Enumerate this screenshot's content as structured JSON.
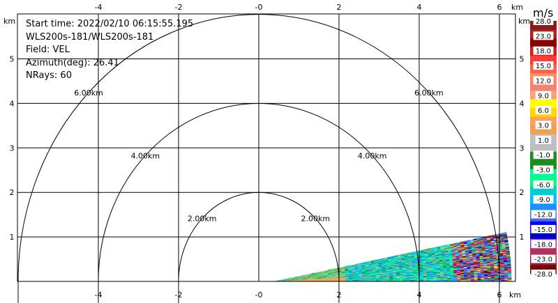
{
  "chart_data": {
    "type": "heatmap",
    "subtype": "radar-ppi-sector",
    "info": {
      "start_time": "Start time: 2022/02/10 06:15:55.195",
      "site": "WLS200s-181/WLS200s-181",
      "field": "Field: VEL",
      "azimuth": "Azimuth(deg): 26.41",
      "nrays": "NRays: 60"
    },
    "axis_unit": "km",
    "xlim": [
      -5.8,
      6.0
    ],
    "ylim": [
      0,
      5.8
    ],
    "x_ticks": [
      -4,
      -2,
      0,
      2,
      4,
      6
    ],
    "x_tick_labels": [
      "-4",
      "-2",
      "-0",
      "2",
      "4",
      "6"
    ],
    "y_ticks": [
      1,
      2,
      3,
      4,
      5
    ],
    "y_tick_labels": [
      "1",
      "2",
      "3",
      "4",
      "5"
    ],
    "range_rings": [
      {
        "radius_km": 2,
        "label": "2.00km"
      },
      {
        "radius_km": 4,
        "label": "4.00km"
      },
      {
        "radius_km": 6,
        "label": "6.00km"
      }
    ],
    "grid": true,
    "sector": {
      "origin_km": [
        0.4,
        0
      ],
      "azimuth_deg": [
        0,
        12
      ],
      "max_range_km": 5.9
    },
    "colorbar": {
      "unit": "m/s",
      "tick_labels": [
        "28.0",
        "23.0",
        "18.0",
        "15.0",
        "12.0",
        "9.0",
        "6.0",
        "3.0",
        "1.0",
        "-1.0",
        "-3.0",
        "-6.0",
        "-9.0",
        "-12.0",
        "-15.0",
        "-18.0",
        "-23.0",
        "-28.0"
      ],
      "colors": [
        "#8b1a1a",
        "#b22222",
        "#8b0000",
        "#d21f1f",
        "#ff3b3b",
        "#ff6347",
        "#ff8c69",
        "#fa8072",
        "#ffa07a",
        "#ffff00",
        "#ffd700",
        "#f4a460",
        "#f0a050",
        "#c0c0c0",
        "#bebebe",
        "#228b22",
        "#1e8c1e",
        "#00fa9a",
        "#00ff7f",
        "#00ced1",
        "#00bfff",
        "#1e90ff",
        "#4169e1",
        "#0000ff",
        "#0000cd",
        "#9932cc",
        "#b03060",
        "#8b2252",
        "#800000"
      ]
    }
  }
}
